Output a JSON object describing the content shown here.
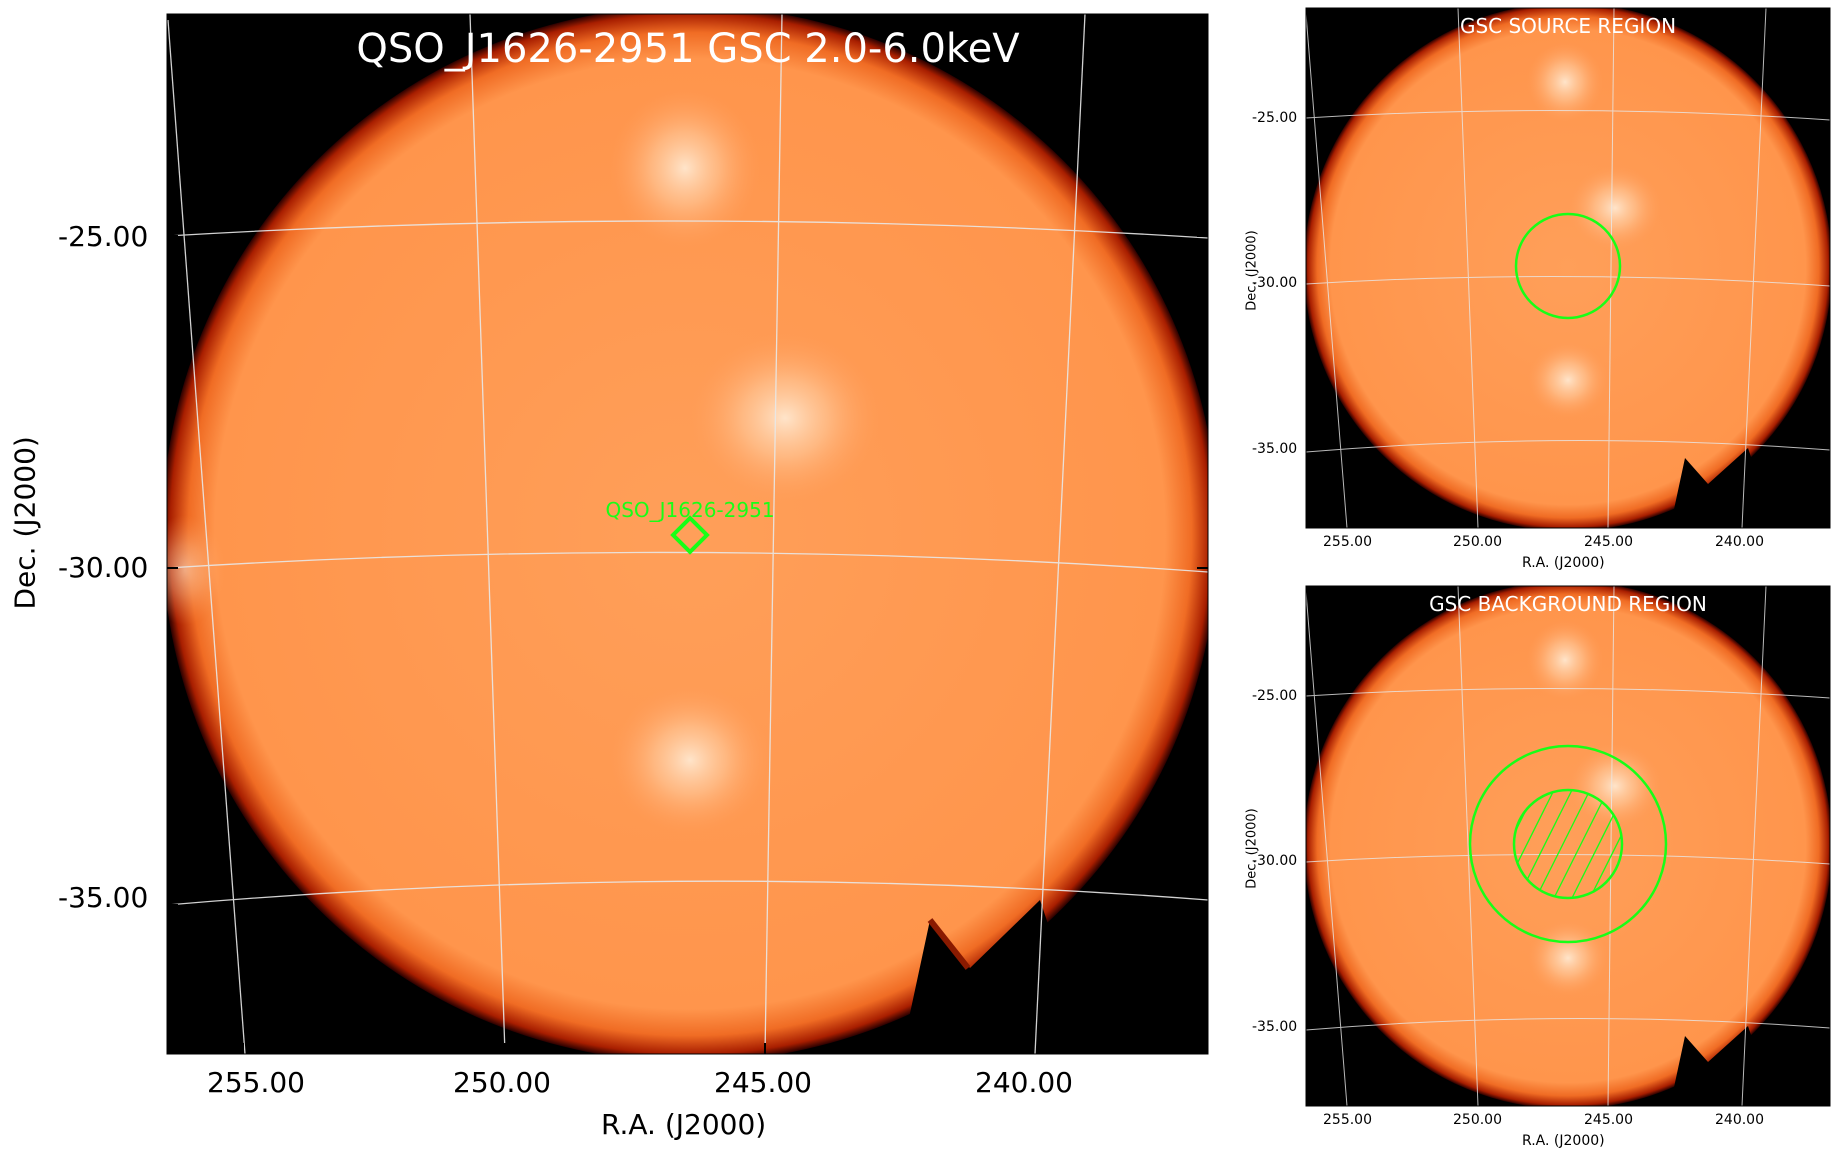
{
  "main": {
    "title": "QSO_J1626-2951 GSC 2.0-6.0keV",
    "source_label": "QSO_J1626-2951",
    "x_ticks": [
      "255.00",
      "250.00",
      "245.00",
      "240.00"
    ],
    "y_ticks": [
      "-25.00",
      "-30.00",
      "-35.00"
    ],
    "xlabel": "R.A. (J2000)",
    "ylabel": "Dec. (J2000)"
  },
  "source_panel": {
    "title": "GSC SOURCE REGION",
    "x_ticks": [
      "255.00",
      "250.00",
      "245.00",
      "240.00"
    ],
    "y_ticks": [
      "-25.00",
      "-30.00",
      "-35.00"
    ],
    "xlabel": "R.A. (J2000)",
    "ylabel": "Dec. (J2000)"
  },
  "background_panel": {
    "title": "GSC BACKGROUND REGION",
    "x_ticks": [
      "255.00",
      "250.00",
      "245.00",
      "240.00"
    ],
    "y_ticks": [
      "-25.00",
      "-30.00",
      "-35.00"
    ],
    "xlabel": "R.A. (J2000)",
    "ylabel": "Dec. (J2000)"
  },
  "colors": {
    "background": "#000000",
    "disk_center": "#ff9a52",
    "disk_edge": "#b32000",
    "hotspot": "#ffe6cc",
    "region": "#17ff17",
    "grid": "#dddddd"
  }
}
